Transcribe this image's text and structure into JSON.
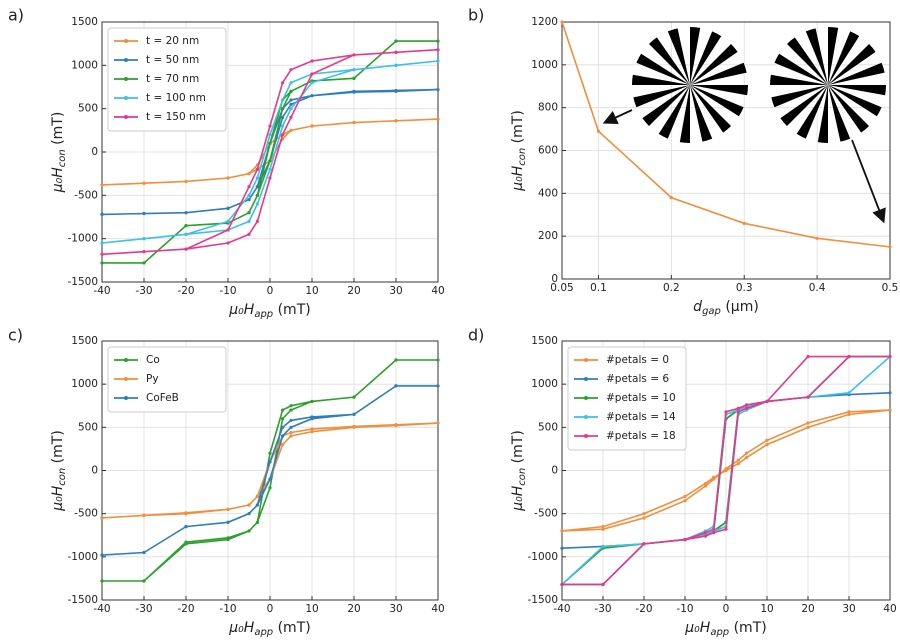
{
  "chart_data": [
    {
      "type": "line",
      "panel_label": "a)",
      "xlabel": {
        "main": "μ₀H",
        "sub": "app",
        "unit": " (mT)"
      },
      "ylabel": {
        "main": "μ₀H",
        "sub": "con",
        "unit": " (mT)"
      },
      "xlim": [
        -40,
        40
      ],
      "xticks": [
        -40,
        -30,
        -20,
        -10,
        0,
        10,
        20,
        30,
        40
      ],
      "ylim": [
        -1500,
        1500
      ],
      "yticks": [
        -1500,
        -1000,
        -500,
        0,
        500,
        1000,
        1500
      ],
      "grid": true,
      "legend": "upper left",
      "series": [
        {
          "name": "t = 20 nm",
          "color": "#f28e3c",
          "x": [
            -40,
            -30,
            -20,
            -10,
            -5,
            -3,
            0,
            3,
            5,
            10,
            20,
            30,
            40,
            30,
            20,
            10,
            5,
            3,
            0,
            -3,
            -5,
            -10,
            -20,
            -30,
            -40
          ],
          "values": [
            -380,
            -360,
            -340,
            -300,
            -250,
            -200,
            -100,
            150,
            250,
            300,
            340,
            360,
            380,
            360,
            340,
            300,
            250,
            200,
            100,
            -150,
            -250,
            -300,
            -340,
            -360,
            -380
          ]
        },
        {
          "name": "t = 50 nm",
          "color": "#2f7ebc",
          "x": [
            -40,
            -30,
            -20,
            -10,
            -5,
            -3,
            0,
            3,
            5,
            10,
            20,
            30,
            40,
            30,
            20,
            10,
            5,
            3,
            0,
            -3,
            -5,
            -10,
            -20,
            -30,
            -40
          ],
          "values": [
            -720,
            -710,
            -700,
            -650,
            -550,
            -400,
            -100,
            400,
            550,
            650,
            690,
            700,
            720,
            710,
            700,
            650,
            600,
            500,
            100,
            -400,
            -550,
            -650,
            -700,
            -710,
            -720
          ]
        },
        {
          "name": "t = 70 nm",
          "color": "#2ca02c",
          "x": [
            -40,
            -30,
            -20,
            -10,
            -5,
            -3,
            0,
            3,
            5,
            10,
            20,
            30,
            40,
            30,
            20,
            10,
            5,
            3,
            0,
            -3,
            -5,
            -10,
            -20,
            -30,
            -40
          ],
          "values": [
            -1280,
            -1280,
            -850,
            -820,
            -700,
            -500,
            -100,
            500,
            700,
            820,
            850,
            1280,
            1280,
            1280,
            850,
            820,
            700,
            600,
            100,
            -500,
            -700,
            -820,
            -850,
            -1280,
            -1280
          ]
        },
        {
          "name": "t = 100 nm",
          "color": "#3cc0e8",
          "x": [
            -40,
            -30,
            -20,
            -10,
            -5,
            -3,
            0,
            3,
            5,
            10,
            20,
            30,
            40,
            30,
            20,
            10,
            5,
            3,
            0,
            -3,
            -5,
            -10,
            -20,
            -30,
            -40
          ],
          "values": [
            -1050,
            -1000,
            -950,
            -900,
            -800,
            -600,
            -200,
            300,
            500,
            800,
            950,
            1000,
            1050,
            1000,
            950,
            900,
            800,
            600,
            200,
            -300,
            -500,
            -800,
            -950,
            -1000,
            -1050
          ]
        },
        {
          "name": "t = 150 nm",
          "color": "#e8388a",
          "x": [
            -40,
            -30,
            -20,
            -10,
            -5,
            -3,
            0,
            3,
            5,
            10,
            20,
            30,
            40,
            30,
            20,
            10,
            5,
            3,
            0,
            -3,
            -5,
            -10,
            -20,
            -30,
            -40
          ],
          "values": [
            -1180,
            -1150,
            -1120,
            -1050,
            -950,
            -800,
            -300,
            200,
            400,
            900,
            1120,
            1150,
            1180,
            1150,
            1120,
            1050,
            950,
            800,
            300,
            -200,
            -400,
            -900,
            -1120,
            -1150,
            -1180
          ]
        }
      ]
    },
    {
      "type": "line",
      "panel_label": "b)",
      "xlabel": {
        "main": "d",
        "sub": "gap",
        "unit": " (µm)"
      },
      "ylabel": {
        "main": "μ₀H",
        "sub": "con",
        "unit": " (mT)"
      },
      "xlim": [
        0.05,
        0.5
      ],
      "xticks": [
        0.05,
        0.1,
        0.2,
        0.3,
        0.4,
        0.5
      ],
      "ylim": [
        0,
        1200
      ],
      "yticks": [
        0,
        200,
        400,
        600,
        800,
        1000,
        1200
      ],
      "grid": true,
      "series": [
        {
          "color": "#f28e3c",
          "x": [
            0.05,
            0.1,
            0.2,
            0.3,
            0.4,
            0.5
          ],
          "values": [
            1200,
            690,
            380,
            260,
            190,
            150
          ]
        }
      ]
    },
    {
      "type": "line",
      "panel_label": "c)",
      "xlabel": {
        "main": "μ₀H",
        "sub": "app",
        "unit": " (mT)"
      },
      "ylabel": {
        "main": "μ₀H",
        "sub": "con",
        "unit": " (mT)"
      },
      "xlim": [
        -40,
        40
      ],
      "xticks": [
        -40,
        -30,
        -20,
        -10,
        0,
        10,
        20,
        30,
        40
      ],
      "ylim": [
        -1500,
        1500
      ],
      "yticks": [
        -1500,
        -1000,
        -500,
        0,
        500,
        1000,
        1500
      ],
      "grid": true,
      "legend": "upper left",
      "series": [
        {
          "name": "Co",
          "color": "#2ca02c",
          "x": [
            -40,
            -30,
            -20,
            -10,
            -5,
            -3,
            0,
            3,
            5,
            10,
            20,
            30,
            40,
            30,
            20,
            10,
            5,
            3,
            0,
            -3,
            -5,
            -10,
            -20,
            -30,
            -40
          ],
          "values": [
            -1280,
            -1280,
            -850,
            -800,
            -700,
            -600,
            -200,
            600,
            700,
            800,
            850,
            1280,
            1280,
            1280,
            850,
            800,
            750,
            700,
            200,
            -600,
            -700,
            -780,
            -830,
            -1280,
            -1280
          ]
        },
        {
          "name": "Py",
          "color": "#f28e3c",
          "x": [
            -40,
            -30,
            -20,
            -10,
            -5,
            -3,
            0,
            3,
            5,
            10,
            20,
            30,
            40,
            30,
            20,
            10,
            5,
            3,
            0,
            -3,
            -5,
            -10,
            -20,
            -30,
            -40
          ],
          "values": [
            -550,
            -520,
            -490,
            -450,
            -400,
            -300,
            -100,
            300,
            400,
            450,
            500,
            520,
            550,
            530,
            510,
            480,
            440,
            400,
            100,
            -300,
            -400,
            -450,
            -500,
            -520,
            -550
          ]
        },
        {
          "name": "CoFeB",
          "color": "#2f7ebc",
          "x": [
            -40,
            -30,
            -20,
            -10,
            -5,
            -3,
            0,
            3,
            5,
            10,
            20,
            30,
            40,
            30,
            20,
            10,
            5,
            3,
            0,
            -3,
            -5,
            -10,
            -20,
            -30,
            -40
          ],
          "values": [
            -980,
            -950,
            -650,
            -600,
            -500,
            -400,
            -100,
            400,
            500,
            600,
            650,
            980,
            980,
            980,
            650,
            620,
            580,
            500,
            100,
            -400,
            -500,
            -600,
            -650,
            -950,
            -980
          ]
        }
      ]
    },
    {
      "type": "line",
      "panel_label": "d)",
      "xlabel": {
        "main": "μ₀H",
        "sub": "app",
        "unit": " (mT)"
      },
      "ylabel": {
        "main": "μ₀H",
        "sub": "con",
        "unit": " (mT)"
      },
      "xlim": [
        -40,
        40
      ],
      "xticks": [
        -40,
        -30,
        -20,
        -10,
        0,
        10,
        20,
        30,
        40
      ],
      "ylim": [
        -1500,
        1500
      ],
      "yticks": [
        -1500,
        -1000,
        -500,
        0,
        500,
        1000,
        1500
      ],
      "grid": true,
      "legend": "upper left",
      "series": [
        {
          "name": "#petals = 0",
          "color": "#f28e3c",
          "x": [
            -40,
            -30,
            -20,
            -10,
            -5,
            -3,
            0,
            3,
            5,
            10,
            20,
            30,
            40,
            30,
            20,
            10,
            5,
            3,
            0,
            -3,
            -5,
            -10,
            -20,
            -30,
            -40
          ],
          "values": [
            -700,
            -650,
            -500,
            -300,
            -150,
            -80,
            0,
            80,
            150,
            300,
            500,
            650,
            700,
            680,
            550,
            350,
            200,
            120,
            20,
            -100,
            -180,
            -350,
            -550,
            -680,
            -700
          ]
        },
        {
          "name": "#petals = 6",
          "color": "#2f7ebc",
          "x": [
            -40,
            -30,
            -20,
            -10,
            -5,
            -3,
            0,
            3,
            5,
            10,
            20,
            30,
            40,
            30,
            20,
            10,
            5,
            3,
            0,
            -3,
            -5,
            -10,
            -20,
            -30,
            -40
          ],
          "values": [
            -900,
            -880,
            -850,
            -800,
            -750,
            -700,
            -600,
            700,
            750,
            800,
            850,
            880,
            900,
            880,
            850,
            800,
            750,
            700,
            600,
            -700,
            -750,
            -800,
            -850,
            -880,
            -900
          ]
        },
        {
          "name": "#petals = 10",
          "color": "#2ca02c",
          "x": [
            -40,
            -30,
            -20,
            -10,
            -5,
            -3,
            0,
            3,
            5,
            10,
            20,
            30,
            40,
            30,
            20,
            10,
            5,
            3,
            0,
            -3,
            -5,
            -10,
            -20,
            -30,
            -40
          ],
          "values": [
            -1320,
            -900,
            -850,
            -800,
            -750,
            -700,
            -600,
            700,
            750,
            800,
            850,
            1320,
            1320,
            1320,
            850,
            800,
            750,
            700,
            600,
            -700,
            -750,
            -800,
            -850,
            -1320,
            -1320
          ]
        },
        {
          "name": "#petals = 14",
          "color": "#3cc0e8",
          "x": [
            -40,
            -30,
            -20,
            -10,
            -5,
            -3,
            0,
            3,
            5,
            10,
            20,
            30,
            40,
            30,
            20,
            10,
            5,
            3,
            0,
            -3,
            -5,
            -10,
            -20,
            -30,
            -40
          ],
          "values": [
            -1320,
            -1320,
            -850,
            -800,
            -740,
            -700,
            -650,
            650,
            700,
            800,
            850,
            900,
            1320,
            1320,
            850,
            800,
            740,
            700,
            650,
            -650,
            -700,
            -800,
            -850,
            -880,
            -1320
          ]
        },
        {
          "name": "#petals = 18",
          "color": "#e8388a",
          "x": [
            -40,
            -30,
            -20,
            -10,
            -5,
            -3,
            0,
            3,
            5,
            10,
            20,
            30,
            40,
            30,
            20,
            10,
            5,
            3,
            0,
            -3,
            -5,
            -10,
            -20,
            -30,
            -40
          ],
          "values": [
            -1320,
            -1320,
            -850,
            -800,
            -760,
            -720,
            -680,
            680,
            720,
            800,
            850,
            1320,
            1320,
            1320,
            1320,
            800,
            760,
            720,
            680,
            -680,
            -720,
            -800,
            -850,
            -1320,
            -1320
          ]
        }
      ]
    }
  ]
}
